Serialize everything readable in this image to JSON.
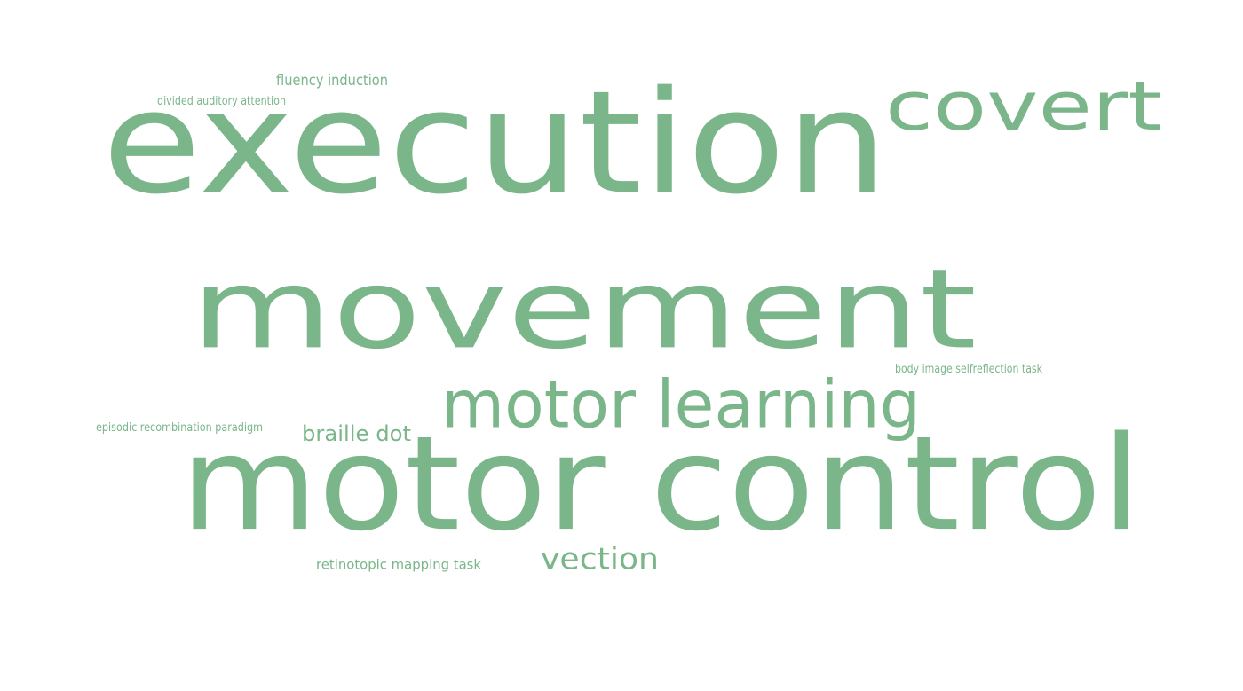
{
  "style": {
    "word_color": "#7ab68a",
    "background": "#ffffff"
  },
  "words": [
    {
      "id": "execution",
      "text": "execution",
      "rank": 1
    },
    {
      "id": "movement",
      "text": "movement",
      "rank": 2
    },
    {
      "id": "motor-control",
      "text": "motor control",
      "rank": 3
    },
    {
      "id": "covert",
      "text": "covert",
      "rank": 4
    },
    {
      "id": "motor-learning",
      "text": "motor learning",
      "rank": 5
    },
    {
      "id": "vection",
      "text": "vection",
      "rank": 6
    },
    {
      "id": "braille-dot",
      "text": "braille dot",
      "rank": 7
    },
    {
      "id": "fluency-induction",
      "text": "fluency induction",
      "rank": 8
    },
    {
      "id": "retinotopic-mapping-task",
      "text": "retinotopic mapping task",
      "rank": 9
    },
    {
      "id": "divided-auditory-attention",
      "text": "divided auditory attention",
      "rank": 10
    },
    {
      "id": "episodic-recombination-paradigm",
      "text": "episodic recombination paradigm",
      "rank": 11
    },
    {
      "id": "body-image-selfreflection-task",
      "text": "body image selfreflection task",
      "rank": 12
    }
  ]
}
